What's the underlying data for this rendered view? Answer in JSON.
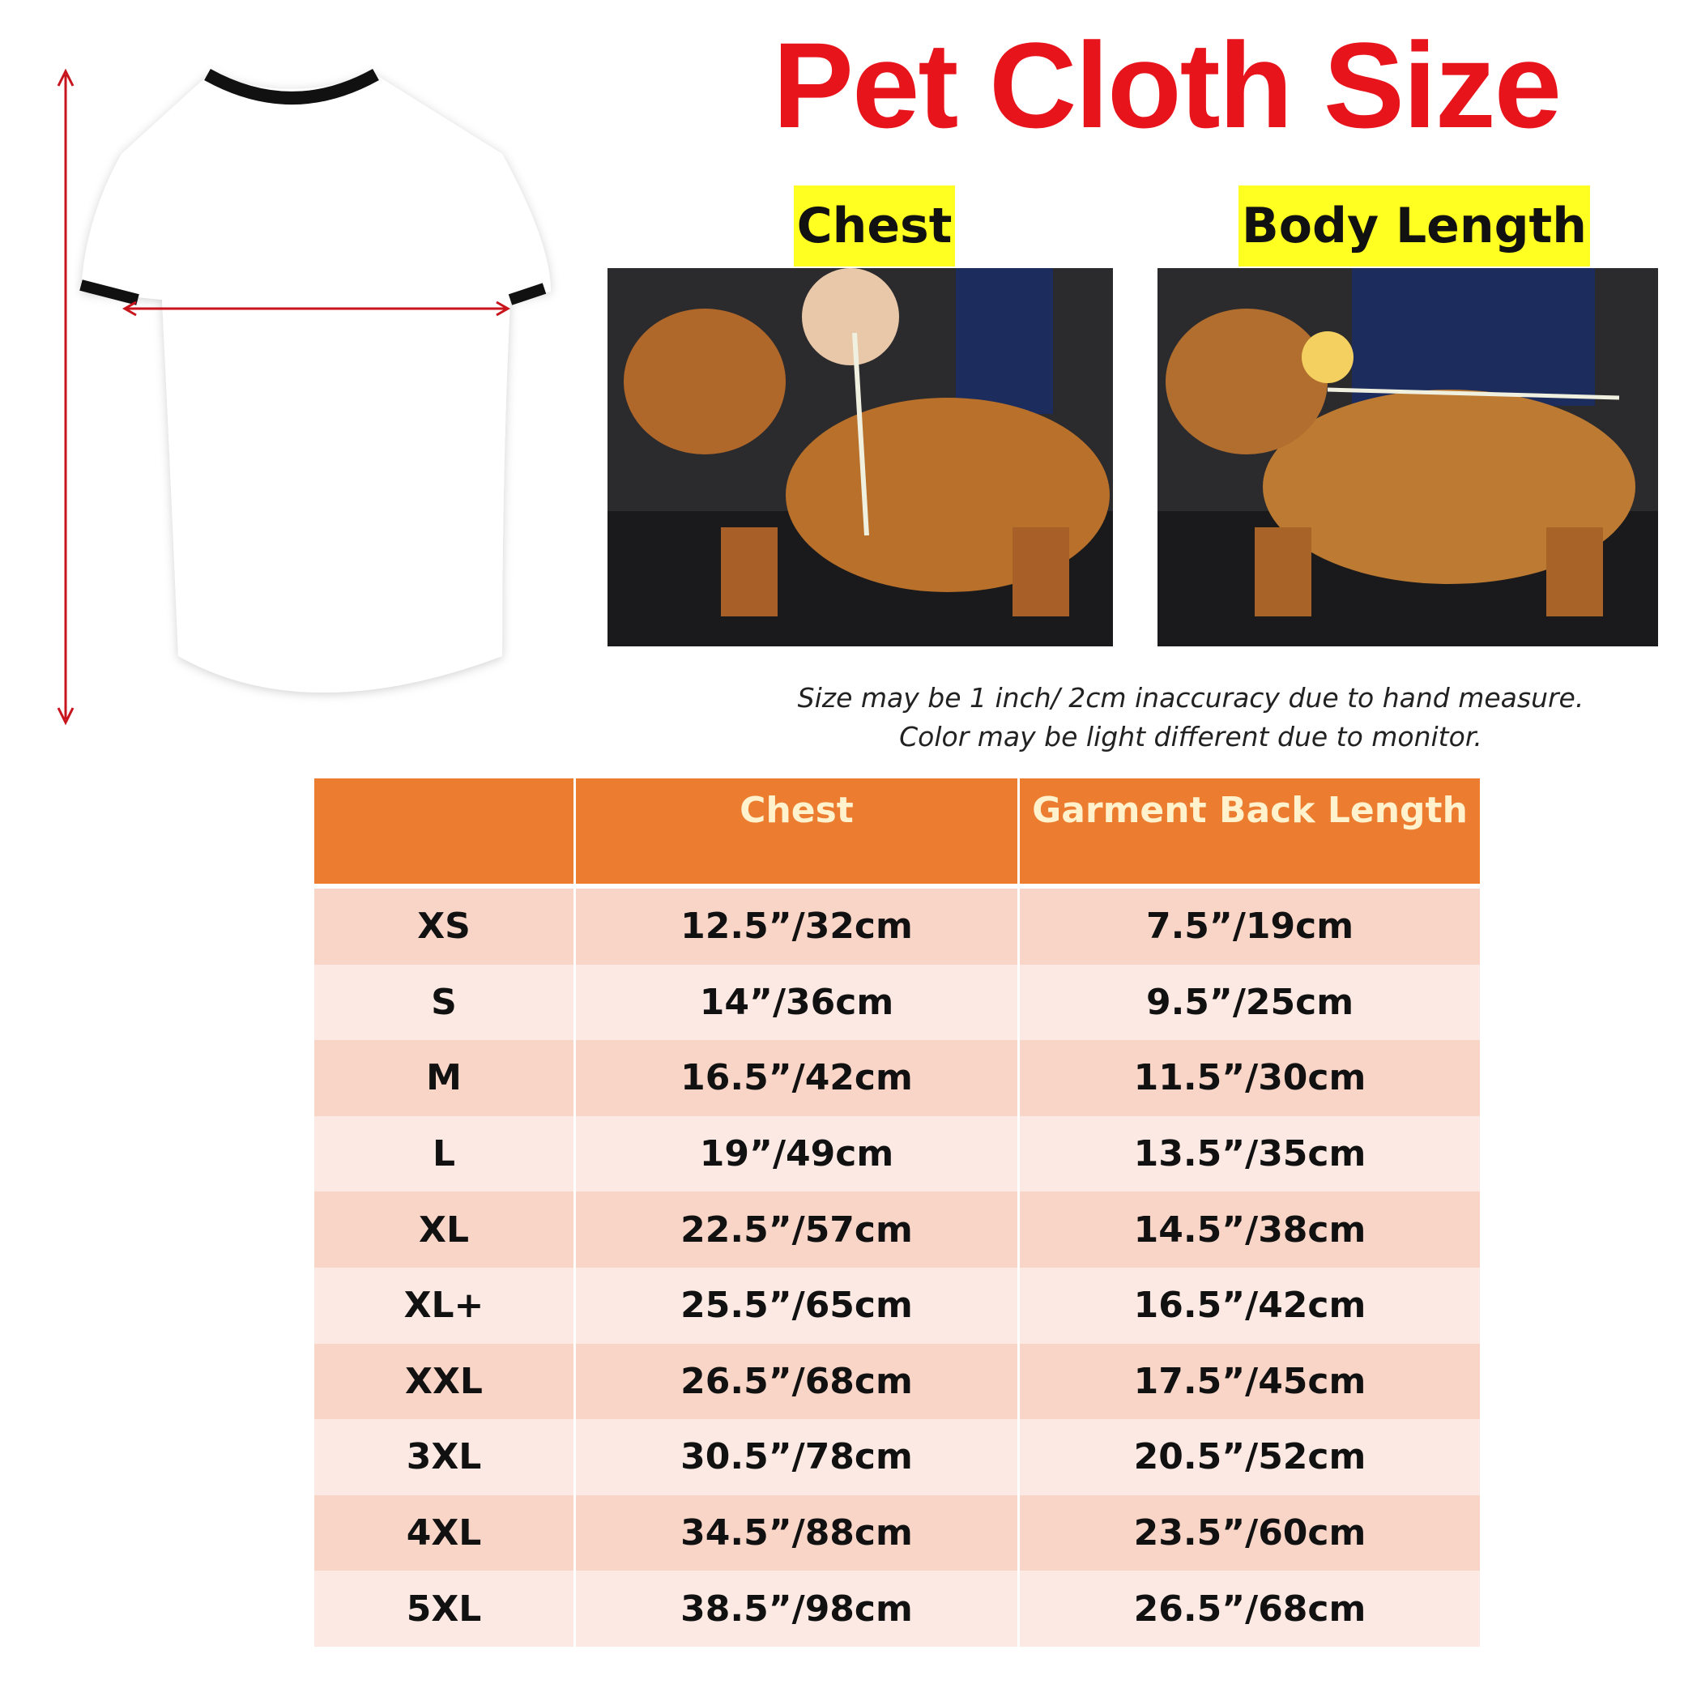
{
  "title": "Pet Cloth Size",
  "labels": {
    "chest": "Chest",
    "body_length": "Body Length"
  },
  "notes": [
    "Size may be 1 inch/ 2cm inaccuracy due to hand measure.",
    "Color may be light different due to monitor."
  ],
  "colors": {
    "title": "#e8141c",
    "header": "#ec7c30",
    "row_dark": "#f9d5c8",
    "row_light": "#fce9e3",
    "label_bg": "#ffff22",
    "arrow": "#c8141c"
  },
  "table": {
    "headers": [
      "",
      "Chest",
      "Garment Back Length"
    ],
    "rows": [
      [
        "XS",
        "12.5”/32cm",
        "7.5”/19cm"
      ],
      [
        "S",
        "14”/36cm",
        "9.5”/25cm"
      ],
      [
        "M",
        "16.5”/42cm",
        "11.5”/30cm"
      ],
      [
        "L",
        "19”/49cm",
        "13.5”/35cm"
      ],
      [
        "XL",
        "22.5”/57cm",
        "14.5”/38cm"
      ],
      [
        "XL+",
        "25.5”/65cm",
        "16.5”/42cm"
      ],
      [
        "XXL",
        "26.5”/68cm",
        "17.5”/45cm"
      ],
      [
        "3XL",
        "30.5”/78cm",
        "20.5”/52cm"
      ],
      [
        "4XL",
        "34.5”/88cm",
        "23.5”/60cm"
      ],
      [
        "5XL",
        "38.5”/98cm",
        "26.5”/68cm"
      ]
    ]
  }
}
